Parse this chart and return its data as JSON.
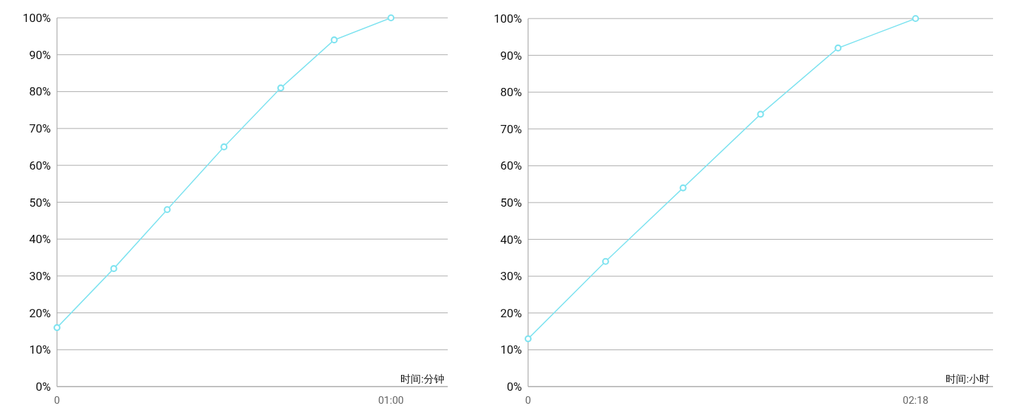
{
  "chart_data": [
    {
      "type": "line",
      "xlabel": "时间:分钟",
      "x": [
        0,
        0.17,
        0.33,
        0.5,
        0.67,
        0.83,
        1
      ],
      "series": [
        {
          "color": "#7fe3f0",
          "values": [
            16,
            32,
            48,
            65,
            81,
            94,
            100
          ]
        }
      ],
      "xlim": [
        0,
        1.17
      ],
      "xticks": [
        0,
        {
          "value": 1,
          "label": "01:00"
        }
      ],
      "ylim": [
        0,
        100
      ],
      "yticks": [
        {
          "value": 0,
          "label": "0%"
        },
        {
          "value": 10,
          "label": "10%"
        },
        {
          "value": 20,
          "label": "20%"
        },
        {
          "value": 30,
          "label": "30%"
        },
        {
          "value": 40,
          "label": "40%"
        },
        {
          "value": 50,
          "label": "50%"
        },
        {
          "value": 60,
          "label": "60%"
        },
        {
          "value": 70,
          "label": "70%"
        },
        {
          "value": 80,
          "label": "80%"
        },
        {
          "value": 90,
          "label": "90%"
        },
        {
          "value": 100,
          "label": "100%"
        }
      ],
      "grid": "y",
      "marker": "circle",
      "line_style": "solid"
    },
    {
      "type": "line",
      "xlabel": "时间:小时",
      "x": [
        0,
        0.46,
        0.92,
        1.38,
        1.84,
        2.3
      ],
      "series": [
        {
          "color": "#7fe3f0",
          "values": [
            13,
            34,
            54,
            74,
            92,
            100
          ]
        }
      ],
      "xlim": [
        0,
        2.76
      ],
      "xticks": [
        0,
        {
          "value": 2.3,
          "label": "02:18"
        }
      ],
      "ylim": [
        0,
        100
      ],
      "yticks": [
        {
          "value": 0,
          "label": "0%"
        },
        {
          "value": 10,
          "label": "10%"
        },
        {
          "value": 20,
          "label": "20%"
        },
        {
          "value": 30,
          "label": "30%"
        },
        {
          "value": 40,
          "label": "40%"
        },
        {
          "value": 50,
          "label": "50%"
        },
        {
          "value": 60,
          "label": "60%"
        },
        {
          "value": 70,
          "label": "70%"
        },
        {
          "value": 80,
          "label": "80%"
        },
        {
          "value": 90,
          "label": "90%"
        },
        {
          "value": 100,
          "label": "100%"
        }
      ],
      "grid": "y",
      "marker": "circle",
      "line_style": "solid"
    }
  ]
}
